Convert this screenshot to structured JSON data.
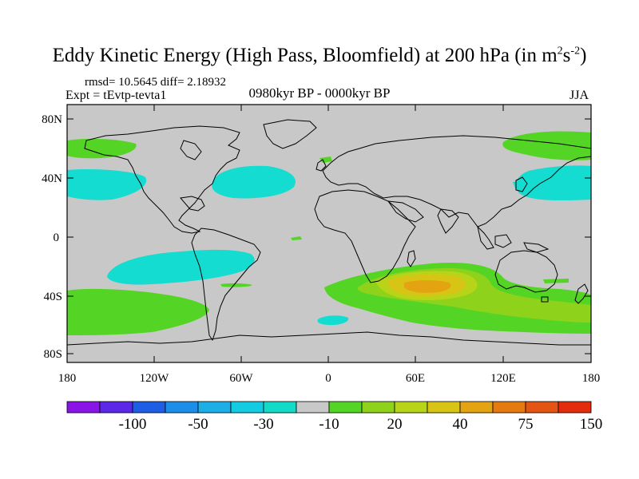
{
  "title": {
    "main": "Eddy Kinetic Energy (High Pass, Bloomfield) at 200 hPa (in m",
    "sup1": "2",
    "mid": "s",
    "sup2": "-2",
    "end": ")"
  },
  "stats": "rmsd= 10.5645 diff= 2.18932",
  "expt": "Expt = tEvtp-tevta1",
  "period": "0980kyr BP - 0000kyr BP",
  "season": "JJA",
  "lat_ticks": [
    "80N",
    "40N",
    "0",
    "40S",
    "80S"
  ],
  "lon_ticks": [
    "180",
    "120W",
    "60W",
    "0",
    "60E",
    "120E",
    "180"
  ],
  "colorbar": {
    "colors": [
      "#8a14e8",
      "#5a28e6",
      "#1e5ee6",
      "#1a8ee8",
      "#1caee6",
      "#14cce2",
      "#12dcc8",
      "#c8c8c8",
      "#54d424",
      "#8ed21c",
      "#b8d418",
      "#d8c414",
      "#e4a412",
      "#e47a10",
      "#e45412",
      "#e42c0c"
    ],
    "labels": [
      "-100",
      "-50",
      "-30",
      "-10",
      "20",
      "40",
      "75",
      "150"
    ]
  },
  "colors": {
    "background": "#c8c8c8",
    "coast": "#000000"
  }
}
